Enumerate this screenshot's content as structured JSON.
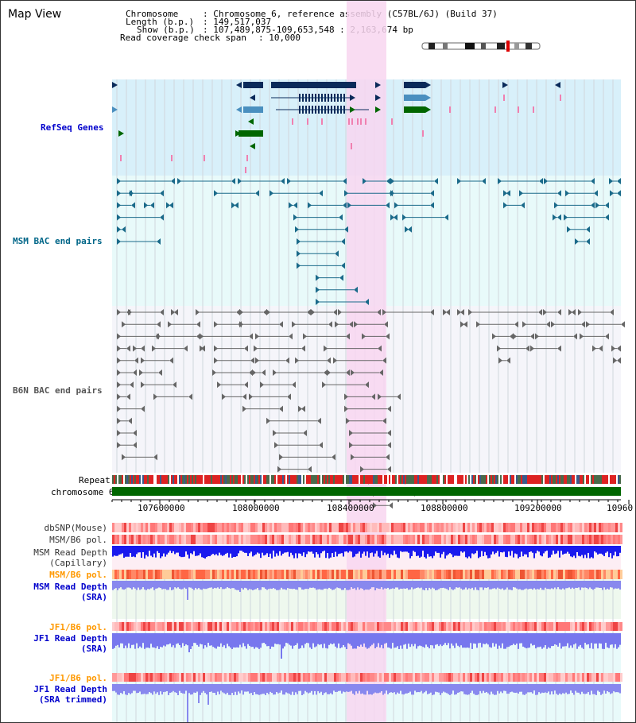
{
  "page": {
    "title": "Map View"
  },
  "info": {
    "chromosome_label": "Chromosome",
    "chromosome_value": ": Chromosome 6, reference assembly (C57BL/6J) (Build 37)",
    "length_label": "Length (b.p.)",
    "length_value": ": 149,517,037",
    "show_label": "Show (b.p.)",
    "show_value": ": 107,489,875-109,653,548 : 2,163,674 bp",
    "coverage_label": "Read coverage check span",
    "coverage_value": ": 10,000"
  },
  "tracks": {
    "refseq": {
      "label": "RefSeq Genes",
      "color": "#0000cc"
    },
    "msm_bac": {
      "label": "MSM BAC end pairs",
      "color": "#006688"
    },
    "b6n_bac": {
      "label": "B6N BAC end pairs",
      "color": "#666666"
    },
    "repeat": {
      "label": "Repeat"
    },
    "chromosome": {
      "label": "chromosome 6"
    },
    "dbsnp": {
      "label": "dbSNP(Mouse)"
    },
    "msm_b6_pol": {
      "label": "MSM/B6 pol."
    },
    "msm_read_depth_cap": {
      "label": "MSM Read Depth\n(Capillary)"
    },
    "msm_b6_pol_sra": {
      "label": "MSM/B6 pol.",
      "color": "#ff9900"
    },
    "msm_read_depth_sra": {
      "label": "MSM Read Depth\n(SRA)"
    },
    "jf1_b6_pol_1": {
      "label": "JF1/B6 pol.",
      "color": "#ff9900"
    },
    "jf1_read_depth_sra": {
      "label": "JF1 Read Depth\n(SRA)"
    },
    "jf1_b6_pol_2": {
      "label": "JF1/B6 pol.",
      "color": "#ff9900"
    },
    "jf1_read_depth_trimmed": {
      "label": "JF1 Read Depth\n(SRA trimmed)"
    }
  },
  "axis": {
    "ticks": [
      "107600000",
      "108000000",
      "108400000",
      "108800000",
      "109200000",
      "10960"
    ]
  },
  "colors": {
    "highlight": "#f8d6f0",
    "refseq_bg": "#d8f0fa",
    "msm_bg": "#e6fbfb",
    "b6n_bg": "#f6f6fa",
    "gene_dark": "#0a2a5a",
    "gene_mid": "#4a8fbf",
    "gene_green": "#006600",
    "chromosome_bar": "#006600",
    "repeat_red": "#dd2222",
    "depth_blue": "#0000dd"
  }
}
